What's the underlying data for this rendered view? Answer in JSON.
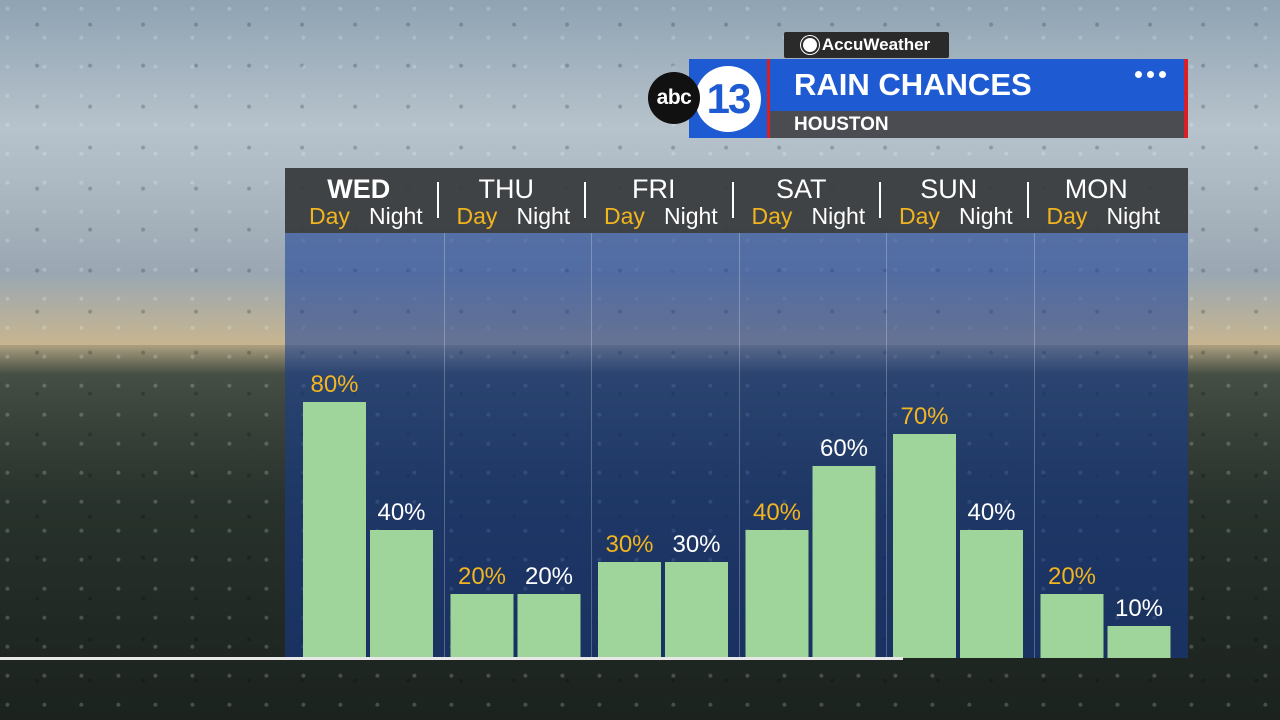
{
  "branding": {
    "provider": "AccuWeather",
    "network": "abc",
    "channel": "13"
  },
  "header": {
    "title": "RAIN CHANCES",
    "location": "HOUSTON"
  },
  "colors": {
    "bar": "#9fd49a",
    "day_label": "#f2b41f",
    "night_label": "#ffffff",
    "brand_blue": "#1e5bd2",
    "brand_red": "#d81f26"
  },
  "chart_data": {
    "type": "bar",
    "title": "RAIN CHANCES",
    "subtitle": "HOUSTON",
    "categories": [
      "WED",
      "THU",
      "FRI",
      "SAT",
      "SUN",
      "MON"
    ],
    "series": [
      {
        "name": "Day",
        "values": [
          80,
          20,
          30,
          40,
          70,
          20
        ]
      },
      {
        "name": "Night",
        "values": [
          40,
          20,
          30,
          60,
          40,
          10
        ]
      }
    ],
    "value_labels": {
      "Day": [
        "80%",
        "20%",
        "30%",
        "40%",
        "70%",
        "20%"
      ],
      "Night": [
        "40%",
        "20%",
        "30%",
        "60%",
        "40%",
        "10%"
      ]
    },
    "ylim": [
      0,
      100
    ],
    "unit": "%",
    "grid": false
  }
}
